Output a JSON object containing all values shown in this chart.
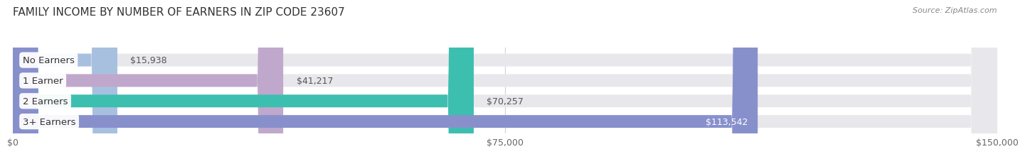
{
  "title": "FAMILY INCOME BY NUMBER OF EARNERS IN ZIP CODE 23607",
  "source": "Source: ZipAtlas.com",
  "categories": [
    "No Earners",
    "1 Earner",
    "2 Earners",
    "3+ Earners"
  ],
  "values": [
    15938,
    41217,
    70257,
    113542
  ],
  "bar_colors": [
    "#a8c0e0",
    "#c0a8cc",
    "#3dbfb0",
    "#8890cc"
  ],
  "background_color": "#ffffff",
  "bar_track_color": "#e8e8ec",
  "xlim": [
    0,
    150000
  ],
  "xticks": [
    0,
    75000,
    150000
  ],
  "xtick_labels": [
    "$0",
    "$75,000",
    "$150,000"
  ],
  "title_fontsize": 11,
  "tick_fontsize": 9,
  "bar_label_fontsize": 9,
  "category_fontsize": 9.5,
  "value_labels": [
    "$15,938",
    "$41,217",
    "$70,257",
    "$113,542"
  ],
  "value_label_threshold": 100000,
  "grid_color": "#d0d0d8",
  "label_inside_color": "#ffffff",
  "label_outside_color": "#555555"
}
